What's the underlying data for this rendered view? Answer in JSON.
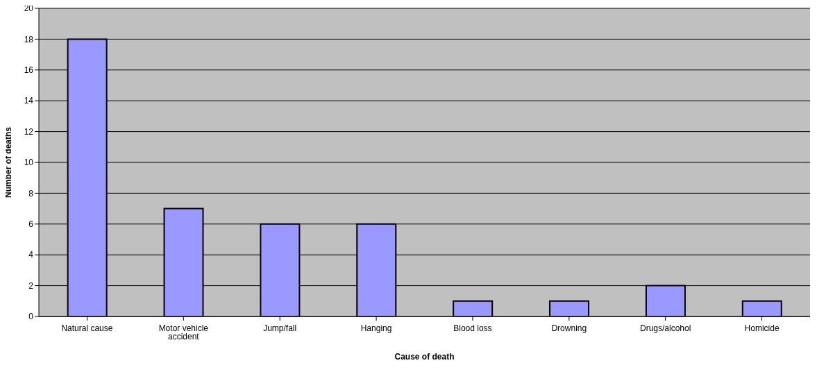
{
  "chart_data": {
    "type": "bar",
    "xlabel": "Cause of death",
    "ylabel": "Number of deaths",
    "categories": [
      "Natural cause",
      "Motor vehicle accident",
      "Jump/fall",
      "Hanging",
      "Blood loss",
      "Drowning",
      "Drugs/alcohol",
      "Homicide"
    ],
    "values": [
      18,
      7,
      6,
      6,
      1,
      1,
      2,
      1
    ],
    "color": "#9999ff",
    "ylim": [
      0,
      20
    ],
    "yticks": [
      0,
      2,
      4,
      6,
      8,
      10,
      12,
      14,
      16,
      18,
      20
    ],
    "grid": "y",
    "legend": false
  }
}
